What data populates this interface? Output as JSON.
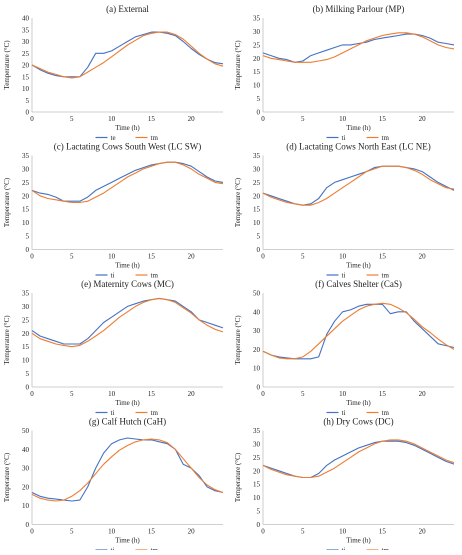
{
  "colors": {
    "series_1": "#4472C4",
    "series_2": "#ED7D31",
    "axis": "#bfbfbf",
    "text": "#222222"
  },
  "chart_data": [
    {
      "type": "line",
      "title": "(a) External",
      "xlabel": "Time (h)",
      "ylabel": "Temperature (°C)",
      "xlim": [
        0,
        24
      ],
      "ylim": [
        0,
        40
      ],
      "xticks": [
        0,
        5,
        10,
        15,
        20
      ],
      "yticks": [
        0,
        5,
        10,
        15,
        20,
        25,
        30,
        35,
        40
      ],
      "legend": "bottom",
      "series": [
        {
          "name": "te",
          "x": [
            0,
            1,
            2,
            3,
            4,
            5,
            6,
            7,
            8,
            9,
            10,
            11,
            12,
            13,
            14,
            15,
            16,
            17,
            18,
            19,
            20,
            21,
            22,
            23,
            24
          ],
          "values": [
            20,
            18,
            16.5,
            15.5,
            15,
            15,
            15,
            19,
            25,
            25,
            26,
            28,
            30,
            32,
            33,
            34,
            34,
            33.5,
            32.5,
            30,
            27,
            24.5,
            22.5,
            21,
            20.5
          ]
        },
        {
          "name": "tm",
          "x": [
            0,
            1,
            2,
            3,
            4,
            5,
            6,
            7,
            8,
            9,
            10,
            11,
            12,
            13,
            14,
            15,
            16,
            17,
            18,
            19,
            20,
            21,
            22,
            23,
            24
          ],
          "values": [
            20,
            18.5,
            17,
            16,
            15,
            14.5,
            15,
            17,
            19,
            21,
            23.5,
            26,
            28.5,
            30.5,
            32.5,
            33.5,
            34,
            34,
            33,
            31,
            28,
            25,
            22.5,
            20.5,
            19.5
          ]
        }
      ]
    },
    {
      "type": "line",
      "title": "(b) Milking Parlour (MP)",
      "xlabel": "Time (h)",
      "ylabel": "Temperature (°C)",
      "xlim": [
        0,
        24
      ],
      "ylim": [
        0,
        35
      ],
      "xticks": [
        0,
        5,
        10,
        15,
        20
      ],
      "yticks": [
        0,
        5,
        10,
        15,
        20,
        25,
        30,
        35
      ],
      "legend": "bottom",
      "series": [
        {
          "name": "ti",
          "x": [
            0,
            1,
            2,
            3,
            4,
            5,
            6,
            7,
            8,
            9,
            10,
            11,
            12,
            13,
            14,
            15,
            16,
            17,
            18,
            19,
            20,
            21,
            22,
            23,
            24
          ],
          "values": [
            22,
            21,
            20,
            19.5,
            18.5,
            19,
            21,
            22,
            23,
            24,
            25,
            25,
            25.5,
            26,
            27,
            27.5,
            28,
            28.5,
            29,
            29,
            28.5,
            27.5,
            26,
            25.5,
            25
          ]
        },
        {
          "name": "tm",
          "x": [
            0,
            1,
            2,
            3,
            4,
            5,
            6,
            7,
            8,
            9,
            10,
            11,
            12,
            13,
            14,
            15,
            16,
            17,
            18,
            19,
            20,
            21,
            22,
            23,
            24
          ],
          "values": [
            21,
            20,
            19.5,
            19,
            18.5,
            18.5,
            18.5,
            19,
            19.5,
            20.5,
            22,
            23.5,
            25,
            26.5,
            27.5,
            28.5,
            29,
            29.5,
            29.5,
            29,
            28,
            26.5,
            25,
            24,
            23.5
          ]
        }
      ]
    },
    {
      "type": "line",
      "title": "(c) Lactating Cows South West (LC SW)",
      "xlabel": "Time (h)",
      "ylabel": "Temperature (°C)",
      "xlim": [
        0,
        24
      ],
      "ylim": [
        0,
        35
      ],
      "xticks": [
        0,
        5,
        10,
        15,
        20
      ],
      "yticks": [
        0,
        5,
        10,
        15,
        20,
        25,
        30,
        35
      ],
      "legend": "bottom",
      "series": [
        {
          "name": "ti",
          "x": [
            0,
            1,
            2,
            3,
            4,
            5,
            6,
            7,
            8,
            9,
            10,
            11,
            12,
            13,
            14,
            15,
            16,
            17,
            18,
            19,
            20,
            21,
            22,
            23,
            24
          ],
          "values": [
            22,
            21,
            20.5,
            19.5,
            18,
            18,
            18,
            19.5,
            22,
            23.5,
            25,
            26.5,
            28,
            29.5,
            30.5,
            31.5,
            32,
            32.5,
            32.5,
            32,
            31,
            29,
            27,
            25.5,
            25
          ]
        },
        {
          "name": "tm",
          "x": [
            0,
            1,
            2,
            3,
            4,
            5,
            6,
            7,
            8,
            9,
            10,
            11,
            12,
            13,
            14,
            15,
            16,
            17,
            18,
            19,
            20,
            21,
            22,
            23,
            24
          ],
          "values": [
            22,
            20,
            19,
            18.5,
            18,
            17.5,
            17.5,
            18,
            19.5,
            21,
            23,
            25,
            27,
            28.5,
            30,
            31,
            32,
            32.5,
            32.5,
            31.5,
            30,
            28,
            26.5,
            25,
            24.5
          ]
        }
      ]
    },
    {
      "type": "line",
      "title": "(d) Lactating Cows North East (LC NE)",
      "xlabel": "Time (h)",
      "ylabel": "Temperature (°C)",
      "xlim": [
        0,
        24
      ],
      "ylim": [
        0,
        35
      ],
      "xticks": [
        0,
        5,
        10,
        15,
        20
      ],
      "yticks": [
        0,
        5,
        10,
        15,
        20,
        25,
        30,
        35
      ],
      "legend": "bottom",
      "series": [
        {
          "name": "ti",
          "x": [
            0,
            1,
            2,
            3,
            4,
            5,
            6,
            7,
            8,
            9,
            10,
            11,
            12,
            13,
            14,
            15,
            16,
            17,
            18,
            19,
            20,
            21,
            22,
            23,
            24
          ],
          "values": [
            21,
            20,
            19,
            18,
            17,
            16.5,
            17,
            19,
            23,
            25,
            26,
            27,
            28,
            29,
            30.5,
            31,
            31,
            31,
            30.5,
            30,
            29,
            27,
            25,
            23.5,
            22
          ]
        },
        {
          "name": "tm",
          "x": [
            0,
            1,
            2,
            3,
            4,
            5,
            6,
            7,
            8,
            9,
            10,
            11,
            12,
            13,
            14,
            15,
            16,
            17,
            18,
            19,
            20,
            21,
            22,
            23,
            24
          ],
          "values": [
            21,
            19.5,
            18.5,
            17.5,
            17,
            16.5,
            16.5,
            17.5,
            19,
            21,
            23,
            25,
            27,
            29,
            30,
            31,
            31,
            31,
            30.5,
            29.5,
            28,
            26,
            24.5,
            23,
            22.5
          ]
        }
      ]
    },
    {
      "type": "line",
      "title": "(e) Maternity Cows (MC)",
      "xlabel": "Time (h)",
      "ylabel": "Temperature (°C)",
      "xlim": [
        0,
        24
      ],
      "ylim": [
        0,
        35
      ],
      "xticks": [
        0,
        5,
        10,
        15,
        20
      ],
      "yticks": [
        0,
        5,
        10,
        15,
        20,
        25,
        30,
        35
      ],
      "legend": "bottom",
      "series": [
        {
          "name": "ti",
          "x": [
            0,
            1,
            2,
            3,
            4,
            5,
            6,
            7,
            8,
            9,
            10,
            11,
            12,
            13,
            14,
            15,
            16,
            17,
            18,
            19,
            20,
            21,
            22,
            23,
            24
          ],
          "values": [
            21,
            19,
            18,
            17,
            16,
            16,
            16,
            18,
            21,
            24,
            26,
            28,
            30,
            31,
            32,
            32.5,
            33,
            32.5,
            32,
            30,
            28,
            25,
            24,
            23,
            22
          ]
        },
        {
          "name": "tm",
          "x": [
            0,
            1,
            2,
            3,
            4,
            5,
            6,
            7,
            8,
            9,
            10,
            11,
            12,
            13,
            14,
            15,
            16,
            17,
            18,
            19,
            20,
            21,
            22,
            23,
            24
          ],
          "values": [
            20,
            18,
            17,
            16,
            15.5,
            15,
            15.5,
            17,
            19,
            21,
            23.5,
            26,
            28,
            30,
            31.5,
            32.5,
            33,
            32.5,
            31.5,
            29.5,
            27.5,
            25,
            23,
            21.5,
            20.5
          ]
        }
      ]
    },
    {
      "type": "line",
      "title": "(f) Calves Shelter (CaS)",
      "xlabel": "Time (h)",
      "ylabel": "Temperature (°C)",
      "xlim": [
        0,
        24
      ],
      "ylim": [
        0,
        50
      ],
      "xticks": [
        0,
        5,
        10,
        15,
        20
      ],
      "yticks": [
        0,
        10,
        20,
        30,
        40,
        50
      ],
      "legend": "bottom",
      "series": [
        {
          "name": "ti",
          "x": [
            0,
            1,
            2,
            3,
            4,
            5,
            6,
            7,
            8,
            9,
            10,
            11,
            12,
            13,
            14,
            15,
            16,
            17,
            18,
            19,
            20,
            21,
            22,
            23,
            24
          ],
          "values": [
            19,
            17,
            16,
            15.5,
            15,
            15,
            15,
            16,
            28,
            35,
            40,
            41,
            43,
            44,
            44,
            44,
            39,
            40,
            40,
            35,
            31,
            27,
            23,
            22,
            21
          ]
        },
        {
          "name": "tm",
          "x": [
            0,
            1,
            2,
            3,
            4,
            5,
            6,
            7,
            8,
            9,
            10,
            11,
            12,
            13,
            14,
            15,
            16,
            17,
            18,
            19,
            20,
            21,
            22,
            23,
            24
          ],
          "values": [
            19,
            17,
            15.5,
            15,
            15,
            16,
            19,
            23,
            27,
            31,
            35,
            38,
            41,
            43,
            44,
            44.5,
            44,
            42,
            39.5,
            36,
            32,
            29,
            25.5,
            22.5,
            20
          ]
        }
      ]
    },
    {
      "type": "line",
      "title": "(g) Calf Hutch (CaH)",
      "xlabel": "Time (h)",
      "ylabel": "Temperature (°C)",
      "xlim": [
        0,
        24
      ],
      "ylim": [
        0,
        50
      ],
      "xticks": [
        0,
        5,
        10,
        15,
        20
      ],
      "yticks": [
        0,
        10,
        20,
        30,
        40,
        50
      ],
      "legend": "bottom",
      "series": [
        {
          "name": "ti",
          "x": [
            0,
            1,
            2,
            3,
            4,
            5,
            6,
            7,
            8,
            9,
            10,
            11,
            12,
            13,
            14,
            15,
            16,
            17,
            18,
            19,
            20,
            21,
            22,
            23,
            24
          ],
          "values": [
            17,
            15,
            14,
            13.5,
            13,
            12.5,
            13,
            20,
            30,
            38,
            43,
            45,
            46,
            45.5,
            45,
            45,
            44,
            43,
            40,
            32,
            30,
            26,
            20,
            18,
            17
          ]
        },
        {
          "name": "tm",
          "x": [
            0,
            1,
            2,
            3,
            4,
            5,
            6,
            7,
            8,
            9,
            10,
            11,
            12,
            13,
            14,
            15,
            16,
            17,
            18,
            19,
            20,
            21,
            22,
            23,
            24
          ],
          "values": [
            16,
            14,
            13,
            12.5,
            13,
            15,
            18,
            22,
            27,
            32,
            36,
            39.5,
            42,
            44,
            45,
            45.5,
            45,
            43.5,
            40,
            35,
            30,
            25,
            21,
            18.5,
            17
          ]
        }
      ]
    },
    {
      "type": "line",
      "title": "(h) Dry Cows (DC)",
      "xlabel": "Time (h)",
      "ylabel": "Temperature (°C)",
      "xlim": [
        0,
        24
      ],
      "ylim": [
        0,
        35
      ],
      "xticks": [
        0,
        5,
        10,
        15,
        20
      ],
      "yticks": [
        0,
        5,
        10,
        15,
        20,
        25,
        30,
        35
      ],
      "legend": "bottom",
      "series": [
        {
          "name": "ti",
          "x": [
            0,
            1,
            2,
            3,
            4,
            5,
            6,
            7,
            8,
            9,
            10,
            11,
            12,
            13,
            14,
            15,
            16,
            17,
            18,
            19,
            20,
            21,
            22,
            23,
            24
          ],
          "values": [
            22,
            21,
            20,
            19,
            18,
            17.5,
            17.5,
            19,
            22,
            24,
            25.5,
            27,
            28.5,
            29.5,
            30.5,
            31,
            31,
            31,
            30.5,
            29.5,
            28,
            26.5,
            25,
            23.5,
            22.5
          ]
        },
        {
          "name": "tm",
          "x": [
            0,
            1,
            2,
            3,
            4,
            5,
            6,
            7,
            8,
            9,
            10,
            11,
            12,
            13,
            14,
            15,
            16,
            17,
            18,
            19,
            20,
            21,
            22,
            23,
            24
          ],
          "values": [
            22,
            20.5,
            19.5,
            18.5,
            18,
            17.5,
            17.5,
            18,
            19.5,
            21,
            23,
            25,
            27,
            28.5,
            30,
            31,
            31.5,
            31.5,
            31,
            30,
            28.5,
            27,
            25.5,
            24,
            23
          ]
        }
      ]
    }
  ]
}
